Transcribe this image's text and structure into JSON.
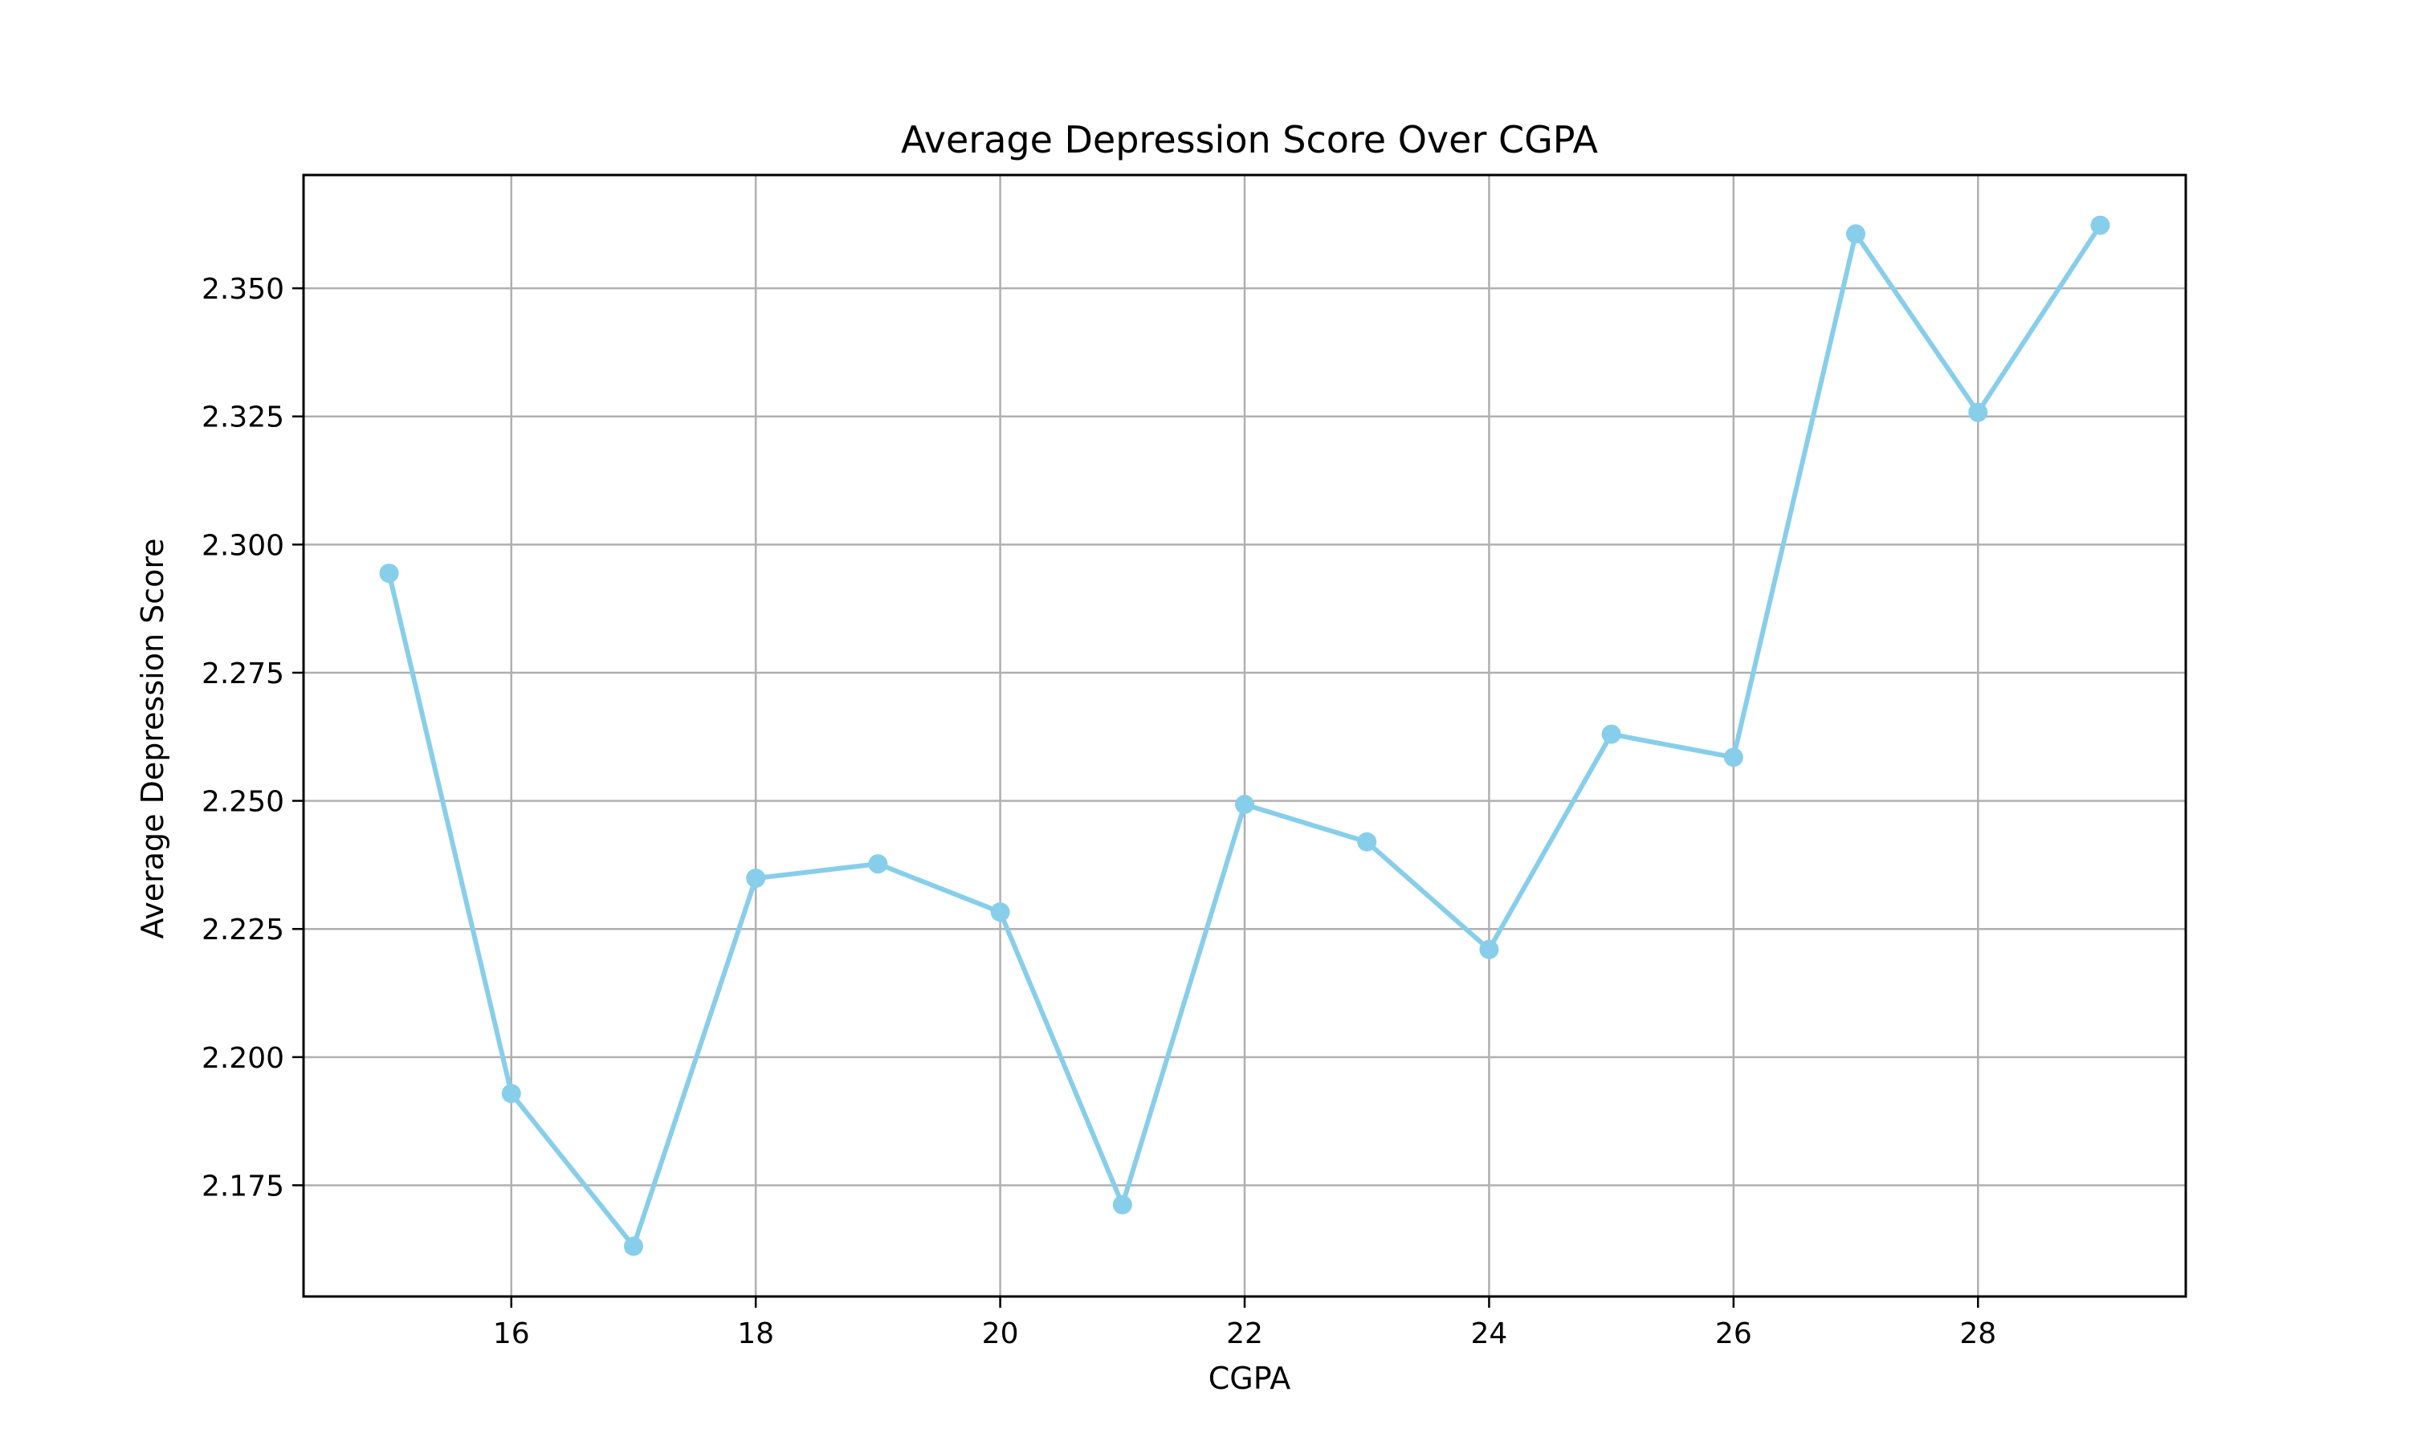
{
  "chart_data": {
    "type": "line",
    "title": "Average Depression Score Over CGPA",
    "xlabel": "CGPA",
    "ylabel": "Average Depression Score",
    "x": [
      15,
      16,
      17,
      18,
      19,
      20,
      21,
      22,
      23,
      24,
      25,
      26,
      27,
      28,
      29
    ],
    "series": [
      {
        "values": [
          2.2944,
          2.1929,
          2.1631,
          2.2349,
          2.2377,
          2.2283,
          2.1712,
          2.2493,
          2.242,
          2.221,
          2.263,
          2.2585,
          2.3606,
          2.3258,
          2.3623
        ],
        "color": "#87ceeb"
      }
    ],
    "xlim": [
      14.3,
      29.7
    ],
    "ylim": [
      2.1533,
      2.3721
    ],
    "xticks": [
      16,
      18,
      20,
      22,
      24,
      26,
      28
    ],
    "xtick_labels": [
      "16",
      "18",
      "20",
      "22",
      "24",
      "26",
      "28"
    ],
    "yticks": [
      2.175,
      2.2,
      2.225,
      2.25,
      2.275,
      2.3,
      2.325,
      2.35
    ],
    "ytick_labels": [
      "2.175",
      "2.200",
      "2.225",
      "2.250",
      "2.275",
      "2.300",
      "2.325",
      "2.350"
    ],
    "grid": true,
    "legend": "none",
    "markers": "circle",
    "frame_color": "#000000",
    "grid_color": "#b0b0b0"
  }
}
